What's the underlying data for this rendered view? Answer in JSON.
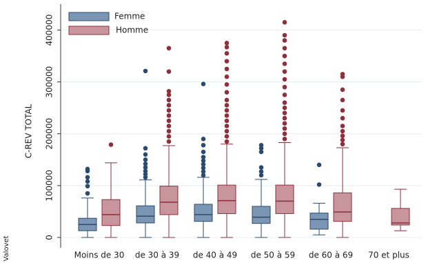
{
  "chart_data": {
    "type": "boxplot",
    "ylabel": "C-REV TOTAL",
    "note": "Valovet",
    "categories": [
      "Moins de 30",
      "de 30 à 39",
      "de 40 à 49",
      "de 50 à 59",
      "de 60 à 69",
      "70 et plus"
    ],
    "ylim": [
      -20000,
      450000
    ],
    "yticks": [
      0,
      100000,
      200000,
      300000,
      400000
    ],
    "grid": true,
    "legend": "top-left",
    "series": [
      {
        "name": "Femme",
        "color": "#7b95b5",
        "edge": "#2b4b6e",
        "boxes": [
          {
            "min": 0,
            "q1": 13000,
            "median": 25000,
            "q3": 37000,
            "max": 76000,
            "outliers": [
              85000,
              99000,
              108000,
              116000,
              128000,
              132000
            ]
          },
          {
            "min": 0,
            "q1": 28000,
            "median": 41000,
            "q3": 61000,
            "max": 111000,
            "outliers": [
              116000,
              122000,
              128000,
              135000,
              142000,
              150000,
              160000,
              172000,
              321000
            ]
          },
          {
            "min": 0,
            "q1": 31000,
            "median": 44000,
            "q3": 64000,
            "max": 116000,
            "outliers": [
              120000,
              127000,
              134000,
              141000,
              148000,
              155000,
              165000,
              178000,
              190000,
              296000
            ]
          },
          {
            "min": 0,
            "q1": 27000,
            "median": 39000,
            "q3": 60000,
            "max": 112000,
            "outliers": [
              120000,
              127000,
              135000,
              165000,
              172000,
              178000
            ]
          },
          {
            "min": 5000,
            "q1": 16000,
            "median": 35000,
            "q3": 47000,
            "max": 66000,
            "outliers": [
              102000,
              140000
            ]
          },
          null
        ]
      },
      {
        "name": "Homme",
        "color": "#c7959b",
        "edge": "#8e2f3c",
        "boxes": [
          {
            "min": 0,
            "q1": 23000,
            "median": 44000,
            "q3": 73000,
            "max": 144000,
            "outliers": [
              179000
            ]
          },
          {
            "min": 0,
            "q1": 44000,
            "median": 68000,
            "q3": 99000,
            "max": 177000,
            "outliers": [
              185000,
              195000,
              205000,
              215000,
              225000,
              235000,
              245000,
              255000,
              265000,
              275000,
              282000,
              320000,
              365000
            ]
          },
          {
            "min": 0,
            "q1": 46000,
            "median": 71000,
            "q3": 101000,
            "max": 180000,
            "outliers": [
              185000,
              195000,
              205000,
              215000,
              225000,
              235000,
              245000,
              255000,
              265000,
              280000,
              295000,
              310000,
              325000,
              340000,
              355000,
              367000,
              375000
            ]
          },
          {
            "min": 0,
            "q1": 46000,
            "median": 70000,
            "q3": 101000,
            "max": 183000,
            "outliers": [
              190000,
              200000,
              210000,
              220000,
              230000,
              240000,
              250000,
              260000,
              275000,
              290000,
              305000,
              320000,
              335000,
              350000,
              365000,
              380000,
              390000,
              415000
            ]
          },
          {
            "min": 0,
            "q1": 31000,
            "median": 49000,
            "q3": 86000,
            "max": 173000,
            "outliers": [
              180000,
              188000,
              196000,
              205000,
              215000,
              230000,
              245000,
              265000,
              285000,
              310000,
              315000
            ]
          },
          {
            "min": 13000,
            "q1": 24000,
            "median": 28000,
            "q3": 56000,
            "max": 93000,
            "outliers": []
          }
        ]
      }
    ]
  }
}
